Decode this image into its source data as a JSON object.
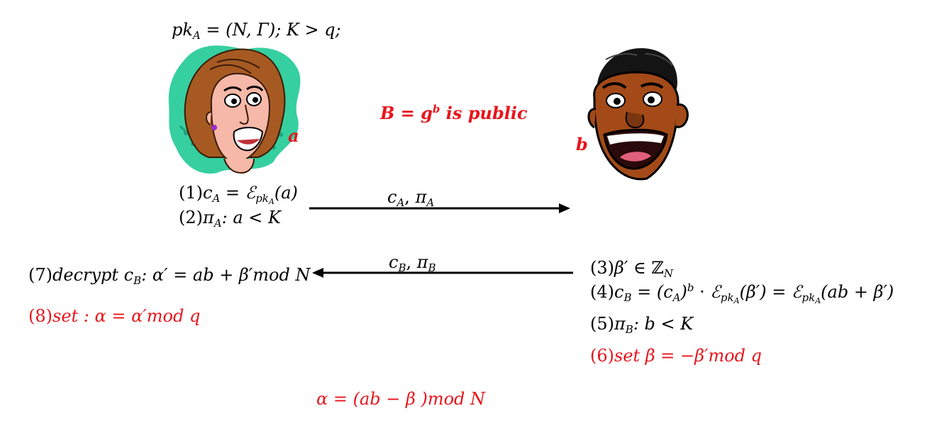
{
  "alice": {
    "pk_prefix": "pk",
    "pk_sub": "A",
    "pk_rest": " = (N, Γ); K > q;",
    "secret_label": "a"
  },
  "bob": {
    "secret_label": "b"
  },
  "public_note": {
    "base": "B = g",
    "exp": "b",
    "rest": " is public"
  },
  "steps": {
    "s1": {
      "num": "(1)",
      "c": "c",
      "c_sub": "A",
      "eq": " = ",
      "enc": "ℰ",
      "enc_sub": "pk",
      "enc_subsub": "A",
      "arg": "(a)"
    },
    "s2": {
      "num": "(2)",
      "pi": "π",
      "pi_sub": "A",
      "rest": ": a < K"
    },
    "s3": {
      "num": "(3)",
      "text": "β′ ∈ ",
      "ring": "ℤ",
      "ring_sub": "N"
    },
    "s4": {
      "num": "(4)",
      "c": "c",
      "c_sub": "B",
      "eq1": " = (c",
      "ca_sub": "A",
      "paren": ")",
      "exp": "b",
      "dot": " · ",
      "enc1": "ℰ",
      "enc1_sub": "pk",
      "enc1_subsub": "A",
      "arg1": "(β′) = ",
      "enc2": "ℰ",
      "enc2_sub": "pk",
      "enc2_subsub": "A",
      "arg2": "(ab + β′)"
    },
    "s5": {
      "num": "(5)",
      "pi": "π",
      "pi_sub": "B",
      "rest": ": b < K"
    },
    "s6": {
      "num": "(6)",
      "text": "set β = −β′mod q"
    },
    "s7": {
      "num": "(7)",
      "prefix": "decrypt c",
      "c_sub": "B",
      "rest": ": α′ = ab + β′mod N"
    },
    "s8": {
      "num": "(8)",
      "text": "set : α = α′mod q"
    }
  },
  "messages": {
    "to_bob": {
      "c": "c",
      "c_sub": "A",
      "sep": ", ",
      "pi": "π",
      "pi_sub": "A"
    },
    "to_alice": {
      "c": "c",
      "c_sub": "B",
      "sep": ", ",
      "pi": "π",
      "pi_sub": "B"
    }
  },
  "result": {
    "text": "α = (ab  − β )mod N"
  },
  "colors": {
    "red": "#e8141b",
    "black": "#000000"
  },
  "icons": {
    "alice": "alice-cartoon-face",
    "bob": "bob-cartoon-face"
  }
}
